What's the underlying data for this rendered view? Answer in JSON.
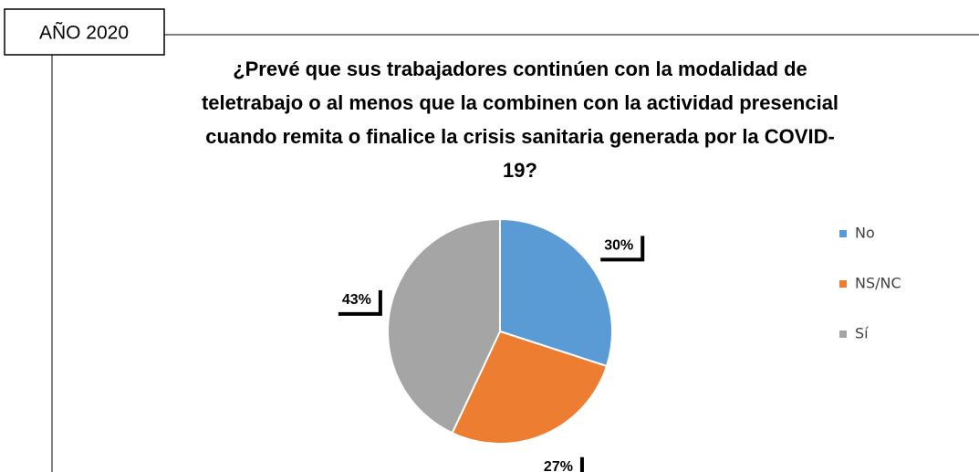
{
  "header": "AÑO 2020",
  "chart_data": {
    "type": "pie",
    "title": [
      "¿Prevé que sus trabajadores continúen con la modalidad de",
      "teletrabajo o al menos que la combinen con la actividad presencial",
      "cuando remita o finalice la crisis sanitaria generada por la COVID-",
      "19?"
    ],
    "categories": [
      "No",
      "NS/NC",
      "Sí"
    ],
    "values": [
      30,
      27,
      43
    ],
    "value_labels": [
      "30%",
      "27%",
      "43%"
    ],
    "colors": [
      "#5b9bd5",
      "#ed7d31",
      "#a5a5a5"
    ],
    "legend": "right"
  }
}
